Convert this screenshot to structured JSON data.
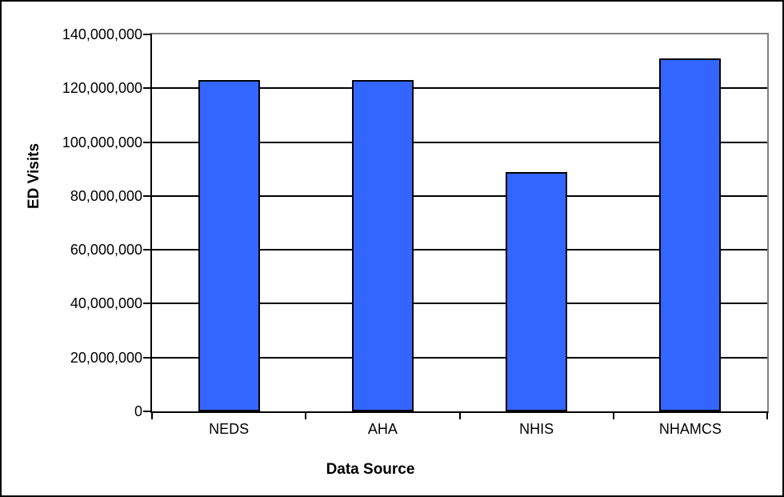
{
  "chart_data": {
    "type": "bar",
    "categories": [
      "NEDS",
      "AHA",
      "NHIS",
      "NHAMCS"
    ],
    "values": [
      123000000,
      123000000,
      89000000,
      131000000
    ],
    "xlabel": "Data Source",
    "ylabel": "ED Visits",
    "ylim": [
      0,
      140000000
    ],
    "ytick_step": 20000000,
    "ytick_labels": [
      "0",
      "20,000,000",
      "40,000,000",
      "60,000,000",
      "80,000,000",
      "100,000,000",
      "120,000,000",
      "140,000,000"
    ],
    "grid": true,
    "legend": "none",
    "colors": {
      "bar_fill": "#3366FF",
      "bar_border": "#000000",
      "gridline": "#000000",
      "axis_line": "#000000",
      "plot_border": "#808080",
      "background": "#FFFFFF",
      "text": "#000000"
    }
  }
}
